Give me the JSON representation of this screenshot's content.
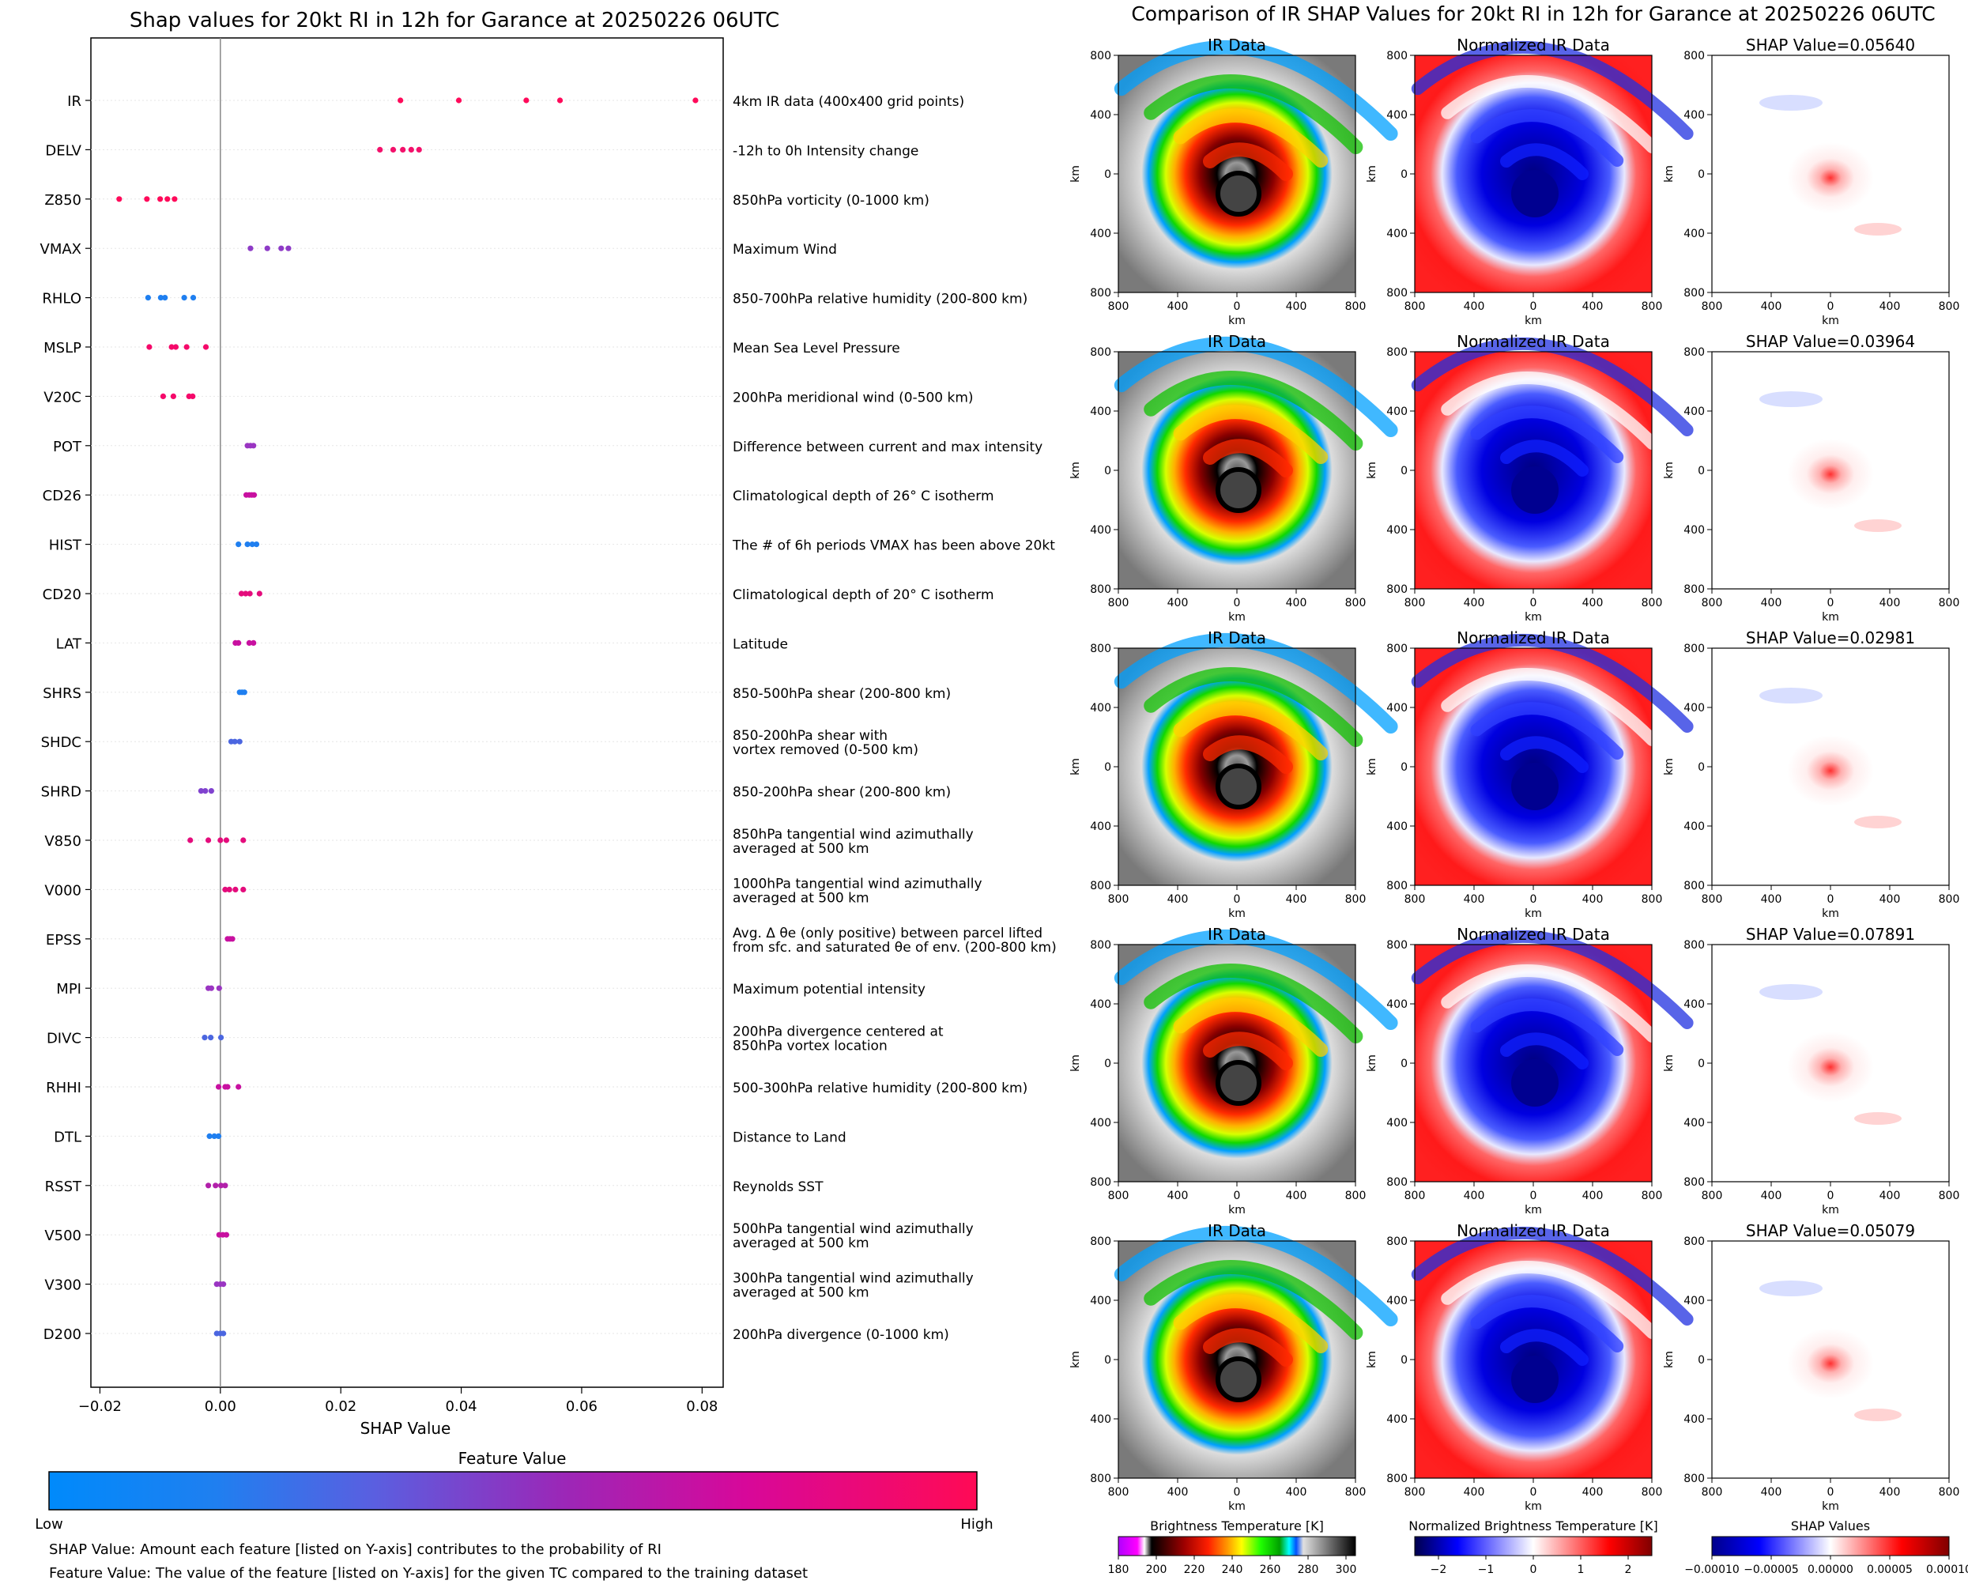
{
  "left_panel": {
    "title": "Shap values for 20kt RI in 12h for Garance at 20250226 06UTC",
    "xlabel": "SHAP Value",
    "xticks": [
      "−0.02",
      "0.00",
      "0.02",
      "0.04",
      "0.06",
      "0.08"
    ],
    "colorbar": {
      "title": "Feature Value",
      "low": "Low",
      "high": "High"
    },
    "notes": [
      "SHAP Value: Amount each feature [listed on Y-axis] contributes to the probability of RI",
      "Feature Value: The value of the feature [listed on Y-axis] for the given TC compared to the training dataset"
    ]
  },
  "right_panel": {
    "title": "Comparison of IR SHAP Values for 20kt RI in 12h for Garance at 20250226 06UTC",
    "col_titles": [
      "IR Data",
      "Normalized IR Data"
    ],
    "shap_prefix": "SHAP Value=",
    "axis_label": "km",
    "ticks": [
      "800",
      "400",
      "0",
      "400",
      "800"
    ],
    "colorbars": [
      {
        "title": "Brightness Temperature [K]",
        "ticks": [
          "180",
          "200",
          "220",
          "240",
          "260",
          "280",
          "300"
        ]
      },
      {
        "title": "Normalized Brightness Temperature [K]",
        "ticks": [
          "−2",
          "−1",
          "0",
          "1",
          "2"
        ]
      },
      {
        "title": "SHAP Values",
        "ticks": [
          "−0.00010",
          "−0.00005",
          "0.00000",
          "0.00005",
          "0.00010"
        ]
      }
    ]
  },
  "chart_data": [
    {
      "type": "scatter",
      "title": "Shap values for 20kt RI in 12h for Garance at 20250226 06UTC",
      "xlabel": "SHAP Value",
      "xlim": [
        -0.0215,
        0.0835
      ],
      "features": [
        {
          "code": "IR",
          "desc": "4km IR data (400x400 grid points)",
          "color": "#ff0a5a",
          "values": [
            0.0299,
            0.0396,
            0.0508,
            0.0564,
            0.0789
          ]
        },
        {
          "code": "DELV",
          "desc": "-12h to 0h Intensity change",
          "color": "#f3116b",
          "values": [
            0.0265,
            0.0287,
            0.0303,
            0.0317,
            0.033
          ]
        },
        {
          "code": "Z850",
          "desc": "850hPa vorticity (0-1000 km)",
          "color": "#ff0a5a",
          "values": [
            -0.0168,
            -0.0122,
            -0.01,
            -0.0088,
            -0.0076
          ]
        },
        {
          "code": "VMAX",
          "desc": "Maximum Wind",
          "color": "#8e3bc7",
          "values": [
            0.005,
            0.0078,
            0.0101,
            0.0113
          ]
        },
        {
          "code": "RHLO",
          "desc": "850-700hPa relative humidity (200-800 km)",
          "color": "#1f7ff0",
          "values": [
            -0.012,
            -0.0099,
            -0.0092,
            -0.006,
            -0.0045
          ]
        },
        {
          "code": "MSLP",
          "desc": "Mean Sea Level Pressure",
          "color": "#f5096a",
          "values": [
            -0.0118,
            -0.0081,
            -0.0074,
            -0.0056,
            -0.0024
          ]
        },
        {
          "code": "V20C",
          "desc": "200hPa meridional wind (0-500 km)",
          "color": "#f5096a",
          "values": [
            -0.0095,
            -0.0078,
            -0.0052,
            -0.0046
          ]
        },
        {
          "code": "POT",
          "desc": "Difference between current and max intensity",
          "color": "#9a35c2",
          "values": [
            0.0045,
            0.005,
            0.0055
          ]
        },
        {
          "code": "CD26",
          "desc": "Climatological depth of 26° C isotherm",
          "color": "#c810a0",
          "values": [
            0.0043,
            0.0048,
            0.0052,
            0.0056
          ]
        },
        {
          "code": "HIST",
          "desc": "The # of 6h periods VMAX has been above 20kt",
          "color": "#1f7ff0",
          "values": [
            0.003,
            0.0045,
            0.0053,
            0.006
          ]
        },
        {
          "code": "CD20",
          "desc": "Climatological depth of 20° C isotherm",
          "color": "#e40c7c",
          "values": [
            0.0035,
            0.0042,
            0.0049,
            0.0065
          ]
        },
        {
          "code": "LAT",
          "desc": "Latitude",
          "color": "#c810a0",
          "values": [
            0.0025,
            0.003,
            0.0048,
            0.0055
          ]
        },
        {
          "code": "SHRS",
          "desc": "850-500hPa shear (200-800 km)",
          "color": "#1f7ff0",
          "values": [
            0.0032,
            0.0036,
            0.004
          ]
        },
        {
          "code": "SHDC",
          "desc": "850-200hPa shear with\nvortex removed (0-500 km)",
          "color": "#4b66e0",
          "values": [
            0.0018,
            0.0024,
            0.0032
          ]
        },
        {
          "code": "SHRD",
          "desc": "850-200hPa shear (200-800 km)",
          "color": "#8042cf",
          "values": [
            -0.0032,
            -0.0025,
            -0.0015
          ]
        },
        {
          "code": "V850",
          "desc": "850hPa tangential wind azimuthally\naveraged at 500 km",
          "color": "#e40c7c",
          "values": [
            -0.005,
            -0.002,
            0.0,
            0.001,
            0.0038
          ]
        },
        {
          "code": "V000",
          "desc": "1000hPa tangential wind azimuthally\naveraged at 500 km",
          "color": "#e40c7c",
          "values": [
            0.0008,
            0.0015,
            0.0025,
            0.0038
          ]
        },
        {
          "code": "EPSS",
          "desc": "Avg. Δ θe (only positive) between parcel lifted\nfrom sfc. and saturated θe of env. (200-800 km)",
          "color": "#c810a0",
          "values": [
            0.0012,
            0.0016,
            0.002
          ]
        },
        {
          "code": "MPI",
          "desc": "Maximum potential intensity",
          "color": "#9a35c2",
          "values": [
            -0.002,
            -0.0015,
            -0.0002
          ]
        },
        {
          "code": "DIVC",
          "desc": "200hPa divergence centered at\n850hPa vortex location",
          "color": "#4b66e0",
          "values": [
            -0.0026,
            -0.0016,
            0.0001
          ]
        },
        {
          "code": "RHHI",
          "desc": "500-300hPa relative humidity (200-800 km)",
          "color": "#c810a0",
          "values": [
            -0.0003,
            0.0008,
            0.0012,
            0.003
          ]
        },
        {
          "code": "DTL",
          "desc": "Distance to Land",
          "color": "#1f7ff0",
          "values": [
            -0.0018,
            -0.001,
            -0.0003
          ]
        },
        {
          "code": "RSST",
          "desc": "Reynolds SST",
          "color": "#b220aa",
          "values": [
            -0.002,
            -0.0008,
            0.0001,
            0.0008
          ]
        },
        {
          "code": "V500",
          "desc": "500hPa tangential wind azimuthally\naveraged at 500 km",
          "color": "#c810a0",
          "values": [
            -0.0002,
            0.0004,
            0.001
          ]
        },
        {
          "code": "V300",
          "desc": "300hPa tangential wind azimuthally\naveraged at 500 km",
          "color": "#9a35c2",
          "values": [
            -0.0006,
            0.0,
            0.0005
          ]
        },
        {
          "code": "D200",
          "desc": "200hPa divergence (0-1000 km)",
          "color": "#4b66e0",
          "values": [
            -0.0006,
            0.0,
            0.0005
          ]
        }
      ]
    },
    {
      "type": "heatmap",
      "title": "Comparison of IR SHAP Values for 20kt RI in 12h for Garance at 20250226 06UTC",
      "xlim": [
        -800,
        800
      ],
      "ylim": [
        -800,
        800
      ],
      "shap_values": [
        "0.05640",
        "0.03964",
        "0.02981",
        "0.07891",
        "0.05079"
      ]
    }
  ]
}
